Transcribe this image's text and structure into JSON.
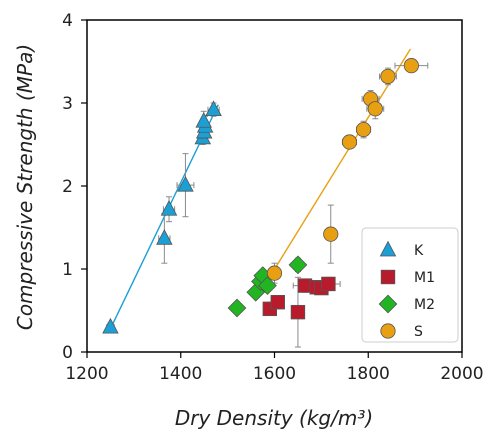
{
  "chart_data": {
    "type": "scatter",
    "title": "",
    "xlabel": "Dry Density (kg/m³)",
    "ylabel": "Compressive Strength (MPa)",
    "xlim": [
      1200,
      2000
    ],
    "ylim": [
      0,
      4
    ],
    "xticks": [
      1200,
      1400,
      1600,
      1800,
      2000
    ],
    "yticks": [
      0,
      1,
      2,
      3,
      4
    ],
    "grid": false,
    "legend_position": "bottom-right",
    "series": [
      {
        "name": "K",
        "marker": "triangle",
        "color": "#1b9fd4",
        "points": [
          {
            "x": 1250,
            "y": 0.3,
            "xerr": 8,
            "yerr": 0.05
          },
          {
            "x": 1365,
            "y": 1.37,
            "xerr": 12,
            "yerr": 0.3
          },
          {
            "x": 1375,
            "y": 1.72,
            "xerr": 12,
            "yerr": 0.15
          },
          {
            "x": 1410,
            "y": 2.01,
            "xerr": 18,
            "yerr": 0.38
          },
          {
            "x": 1447,
            "y": 2.58,
            "xerr": 6,
            "yerr": 0.08
          },
          {
            "x": 1450,
            "y": 2.65,
            "xerr": 6,
            "yerr": 0.1
          },
          {
            "x": 1452,
            "y": 2.72,
            "xerr": 6,
            "yerr": 0.12
          },
          {
            "x": 1449,
            "y": 2.78,
            "xerr": 6,
            "yerr": 0.12
          },
          {
            "x": 1470,
            "y": 2.92,
            "xerr": 12,
            "yerr": 0.08
          }
        ],
        "fit": [
          [
            1250,
            0.28
          ],
          [
            1480,
            2.98
          ]
        ]
      },
      {
        "name": "M1",
        "marker": "square",
        "color": "#b81c2c",
        "points": [
          {
            "x": 1590,
            "y": 0.52,
            "xerr": 10,
            "yerr": 0.08
          },
          {
            "x": 1607,
            "y": 0.6,
            "xerr": 12,
            "yerr": 0.08
          },
          {
            "x": 1650,
            "y": 0.48,
            "xerr": 10,
            "yerr": 0.42
          },
          {
            "x": 1665,
            "y": 0.8,
            "xerr": 25,
            "yerr": 0.08
          },
          {
            "x": 1690,
            "y": 0.78,
            "xerr": 25,
            "yerr": 0.08
          },
          {
            "x": 1700,
            "y": 0.77,
            "xerr": 15,
            "yerr": 0.06
          },
          {
            "x": 1715,
            "y": 0.82,
            "xerr": 25,
            "yerr": 0.08
          }
        ]
      },
      {
        "name": "M2",
        "marker": "diamond",
        "color": "#21b521",
        "points": [
          {
            "x": 1520,
            "y": 0.53,
            "xerr": 10,
            "yerr": 0.04
          },
          {
            "x": 1560,
            "y": 0.72,
            "xerr": 10,
            "yerr": 0.06
          },
          {
            "x": 1570,
            "y": 0.85,
            "xerr": 10,
            "yerr": 0.06
          },
          {
            "x": 1575,
            "y": 0.92,
            "xerr": 10,
            "yerr": 0.06
          },
          {
            "x": 1585,
            "y": 0.8,
            "xerr": 10,
            "yerr": 0.06
          },
          {
            "x": 1650,
            "y": 1.05,
            "xerr": 10,
            "yerr": 0.08
          }
        ]
      },
      {
        "name": "S",
        "marker": "circle",
        "color": "#e8a012",
        "points": [
          {
            "x": 1600,
            "y": 0.95,
            "xerr": 12,
            "yerr": 0.12
          },
          {
            "x": 1720,
            "y": 1.42,
            "xerr": 10,
            "yerr": 0.35
          },
          {
            "x": 1760,
            "y": 2.53,
            "xerr": 15,
            "yerr": 0.08
          },
          {
            "x": 1790,
            "y": 2.68,
            "xerr": 15,
            "yerr": 0.1
          },
          {
            "x": 1805,
            "y": 3.05,
            "xerr": 18,
            "yerr": 0.1
          },
          {
            "x": 1815,
            "y": 2.93,
            "xerr": 18,
            "yerr": 0.12
          },
          {
            "x": 1842,
            "y": 3.32,
            "xerr": 18,
            "yerr": 0.1
          },
          {
            "x": 1892,
            "y": 3.45,
            "xerr": 35,
            "yerr": 0.08
          }
        ],
        "fit": [
          [
            1597,
            0.97
          ],
          [
            1890,
            3.65
          ]
        ]
      }
    ]
  }
}
